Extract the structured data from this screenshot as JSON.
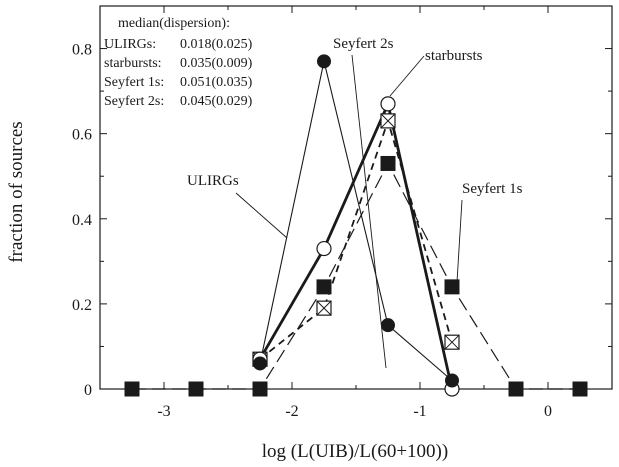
{
  "chart_data": {
    "type": "line",
    "xlabel": "log (L(UIB)/L(60+100))",
    "ylabel": "fraction of sources",
    "xlim": [
      -3.5,
      0.5
    ],
    "ylim": [
      0,
      0.9
    ],
    "xticks": [
      -3,
      -2,
      -1,
      0
    ],
    "xtick_labels": [
      "-3",
      "-2",
      "-1",
      "0"
    ],
    "yticks": [
      0,
      0.2,
      0.4,
      0.6,
      0.8
    ],
    "ytick_labels": [
      "0",
      "0.2",
      "0.4",
      "0.6",
      "0.8"
    ],
    "grid": false,
    "legend": {
      "title": "median(dispersion):",
      "entries": [
        {
          "name": "ULIRGs:",
          "value": "0.018(0.025)"
        },
        {
          "name": "starbursts:",
          "value": "0.035(0.009)"
        },
        {
          "name": "Seyfert 1s:",
          "value": "0.051(0.035)"
        },
        {
          "name": "Seyfert 2s:",
          "value": "0.045(0.029)"
        }
      ]
    },
    "series": [
      {
        "name": "ULIRGs",
        "marker": "filled-circle",
        "line": "thin-solid",
        "x": [
          -2.25,
          -1.75,
          -1.25,
          -0.75
        ],
        "y": [
          0.06,
          0.77,
          0.15,
          0.02
        ]
      },
      {
        "name": "starbursts",
        "marker": "open-circle",
        "line": "thick-solid",
        "x": [
          -2.25,
          -1.75,
          -1.25,
          -0.75
        ],
        "y": [
          0.07,
          0.33,
          0.67,
          0.0
        ]
      },
      {
        "name": "Seyfert 1s",
        "marker": "filled-square",
        "line": "long-dash",
        "x": [
          -3.25,
          -2.75,
          -2.25,
          -1.75,
          -1.25,
          -0.75,
          -0.25,
          0.25
        ],
        "y": [
          0.0,
          0.0,
          0.0,
          0.24,
          0.53,
          0.24,
          0.0,
          0.0
        ]
      },
      {
        "name": "Seyfert 2s",
        "marker": "crossed-square",
        "line": "short-dash",
        "x": [
          -2.25,
          -1.75,
          -1.25,
          -0.75
        ],
        "y": [
          0.07,
          0.19,
          0.63,
          0.11
        ]
      }
    ],
    "annotations": [
      {
        "text": "Seyfert 2s",
        "x": -1.3,
        "y": 0.8
      },
      {
        "text": "starbursts",
        "x": -0.9,
        "y": 0.775
      },
      {
        "text": "ULIRGs",
        "x": -2.55,
        "y": 0.495
      },
      {
        "text": "Seyfert 1s",
        "x": -0.45,
        "y": 0.48
      }
    ]
  }
}
